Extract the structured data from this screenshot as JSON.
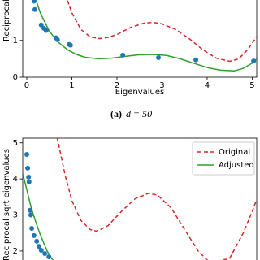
{
  "chart_data": [
    {
      "type": "line",
      "xlabel": "Eigenvalues",
      "ylabel": "Reciprocal sqrt eigenvalues",
      "caption_label": "(a)",
      "caption_text": "d = 50",
      "xlim": [
        -0.09,
        5.1
      ],
      "ylim": [
        0,
        2.1
      ],
      "xticks": [
        0,
        1,
        2,
        3,
        4,
        5
      ],
      "yticks": [
        0,
        1
      ],
      "series": [
        {
          "color": "#d62728",
          "linestyle": "dashed",
          "x": [
            0.8,
            0.9,
            1.0,
            1.2,
            1.4,
            1.6,
            1.8,
            2.0,
            2.3,
            2.6,
            2.8,
            3.0,
            3.3,
            3.6,
            3.9,
            4.2,
            4.5,
            4.7,
            4.9,
            5.1
          ],
          "values": [
            2.6,
            2.1,
            1.75,
            1.3,
            1.1,
            1.05,
            1.08,
            1.16,
            1.35,
            1.47,
            1.49,
            1.45,
            1.3,
            1.05,
            0.75,
            0.52,
            0.43,
            0.5,
            0.75,
            1.1
          ]
        },
        {
          "color": "#2ca02c",
          "linestyle": "solid",
          "x": [
            0.15,
            0.3,
            0.5,
            0.7,
            0.9,
            1.1,
            1.3,
            1.6,
            1.9,
            2.2,
            2.5,
            2.8,
            3.1,
            3.4,
            3.7,
            4.0,
            4.3,
            4.6,
            4.8,
            5.0,
            5.1
          ],
          "values": [
            2.3,
            1.75,
            1.25,
            0.95,
            0.75,
            0.62,
            0.54,
            0.5,
            0.52,
            0.57,
            0.61,
            0.62,
            0.59,
            0.5,
            0.38,
            0.26,
            0.19,
            0.17,
            0.24,
            0.38,
            0.5
          ]
        }
      ],
      "points": {
        "color": "#1f77b4",
        "x": [
          0.16,
          0.18,
          0.32,
          0.38,
          0.43,
          0.65,
          0.68,
          0.94,
          0.97,
          2.13,
          2.92,
          3.75,
          5.03
        ],
        "y": [
          2.07,
          1.84,
          1.42,
          1.33,
          1.27,
          1.07,
          1.02,
          0.89,
          0.87,
          0.6,
          0.53,
          0.47,
          0.44
        ]
      }
    },
    {
      "type": "line",
      "ylabel": "Reciprocal sqrt eigenvalues",
      "xlim": [
        -0.09,
        5.1
      ],
      "ylim": [
        1.75,
        5.13
      ],
      "yticks": [
        2,
        3,
        4,
        5
      ],
      "legend": "upper right",
      "series": [
        {
          "name": "Original",
          "color": "#d62728",
          "linestyle": "dashed",
          "x": [
            0.6,
            0.7,
            0.85,
            1.0,
            1.2,
            1.4,
            1.55,
            1.8,
            2.1,
            2.4,
            2.7,
            2.9,
            3.2,
            3.5,
            3.8,
            4.0,
            4.2,
            4.5,
            4.8,
            5.0,
            5.15
          ],
          "values": [
            5.5,
            5.0,
            4.1,
            3.4,
            2.85,
            2.6,
            2.55,
            2.7,
            3.1,
            3.45,
            3.6,
            3.55,
            3.2,
            2.6,
            2.0,
            1.75,
            1.7,
            1.8,
            2.5,
            3.1,
            3.6
          ]
        },
        {
          "name": "Adjusted",
          "color": "#2ca02c",
          "linestyle": "solid",
          "x": [
            -0.09,
            0.0,
            0.1,
            0.2,
            0.3,
            0.45,
            0.6,
            0.75
          ],
          "values": [
            4.15,
            3.7,
            3.2,
            2.8,
            2.45,
            2.0,
            1.7,
            1.45
          ]
        }
      ],
      "points": {
        "color": "#1f77b4",
        "x": [
          0.0,
          0.02,
          0.04,
          0.05,
          0.07,
          0.09,
          0.11,
          0.16,
          0.22,
          0.27,
          0.32,
          0.4,
          0.49
        ],
        "y": [
          4.68,
          4.3,
          4.05,
          3.92,
          3.13,
          3.0,
          2.63,
          2.43,
          2.27,
          2.13,
          2.02,
          1.93,
          1.84
        ]
      }
    }
  ]
}
